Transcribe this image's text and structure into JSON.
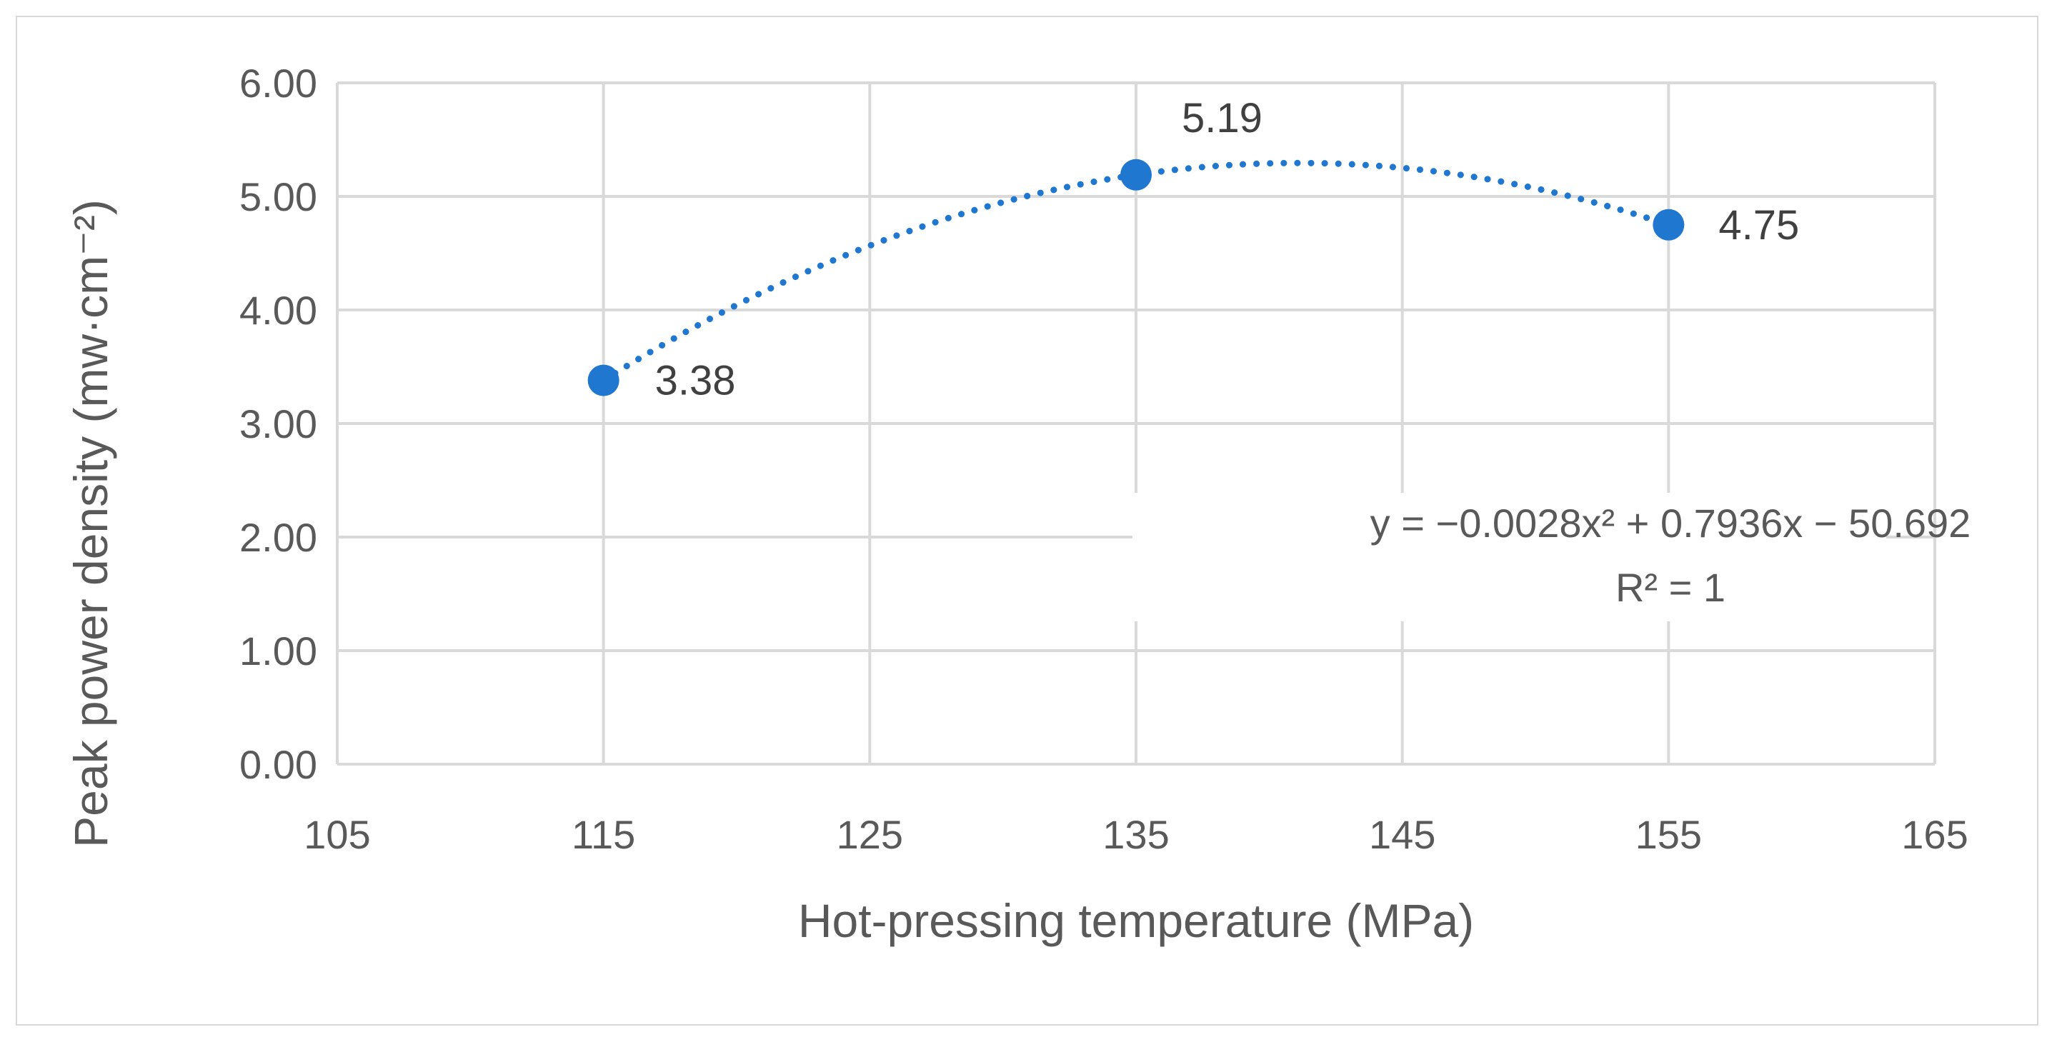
{
  "chart_data": {
    "type": "scatter",
    "title": "",
    "xlabel": "Hot-pressing temperature (MPa)",
    "ylabel": "Peak power density (mw·cm⁻²)",
    "xlim": [
      105,
      165
    ],
    "ylim": [
      0,
      6
    ],
    "xticks": [
      105,
      115,
      125,
      135,
      145,
      155,
      165
    ],
    "xtick_labels": [
      "105",
      "115",
      "125",
      "135",
      "145",
      "155",
      "165"
    ],
    "yticks": [
      0,
      1,
      2,
      3,
      4,
      5,
      6
    ],
    "ytick_labels": [
      "0.00",
      "1.00",
      "2.00",
      "3.00",
      "4.00",
      "5.00",
      "6.00"
    ],
    "grid": true,
    "series": [
      {
        "name": "Peak power density",
        "color": "#1f77d0",
        "x": [
          115,
          135,
          155
        ],
        "y": [
          3.38,
          5.19,
          4.75
        ],
        "labels": [
          "3.38",
          "5.19",
          "4.75"
        ]
      }
    ],
    "trendline": {
      "type": "polynomial",
      "order": 2,
      "coefficients": [
        -0.0028,
        0.7936,
        -50.692
      ],
      "style": "dotted",
      "color": "#1f77d0",
      "equation_text": "y = −0.0028x² + 0.7936x − 50.692",
      "r2_text": "R² = 1"
    }
  }
}
